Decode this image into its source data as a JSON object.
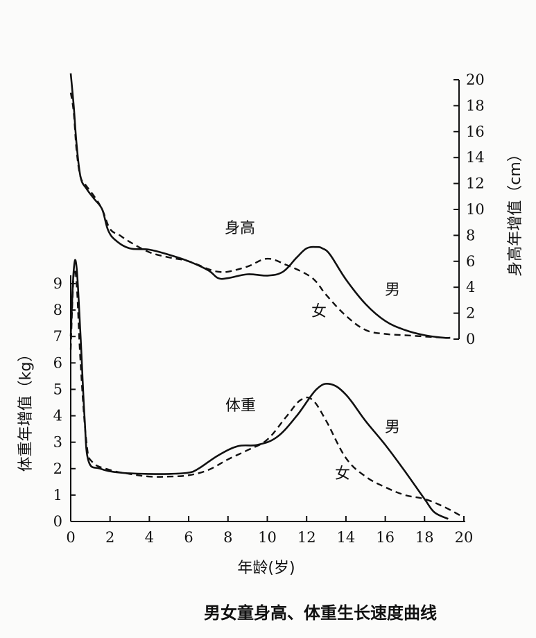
{
  "caption": "男女童身高、体重生长速度曲线",
  "colors": {
    "ink": "#111111",
    "background": "#fbfbfa"
  },
  "chart_data": [
    {
      "type": "line",
      "panel": "height",
      "annotation": "身高",
      "y_axis_side": "right",
      "xlabel": "年龄(岁)",
      "ylabel": "身高年增值（cm）",
      "xlim": [
        0,
        20
      ],
      "ylim": [
        0,
        20
      ],
      "y_ticks": [
        0,
        2,
        4,
        6,
        8,
        10,
        12,
        14,
        16,
        18,
        20
      ],
      "grid": false,
      "series": [
        {
          "name": "男",
          "line_style": "solid",
          "x": [
            0,
            0.15,
            0.3,
            0.5,
            0.8,
            1.2,
            1.6,
            1.9,
            2.3,
            3,
            4,
            5,
            6,
            7,
            7.5,
            8,
            9,
            10,
            10.8,
            11.5,
            12,
            12.5,
            12.8,
            13.2,
            14,
            15,
            16,
            17,
            18,
            19,
            19.3
          ],
          "y": [
            20.5,
            18,
            15,
            12.5,
            11.6,
            10.8,
            10,
            8.4,
            7.6,
            7,
            6.9,
            6.5,
            6.0,
            5.3,
            4.7,
            4.7,
            5.0,
            4.9,
            5.2,
            6.3,
            7.0,
            7.1,
            7.0,
            6.5,
            4.6,
            2.7,
            1.4,
            0.7,
            0.3,
            0.1,
            0.1
          ]
        },
        {
          "name": "女",
          "line_style": "dashed",
          "x": [
            0,
            0.15,
            0.3,
            0.5,
            0.8,
            1.2,
            1.6,
            2.0,
            2.5,
            3,
            4,
            5,
            6,
            7,
            7.5,
            8,
            9,
            10,
            11,
            12,
            12.5,
            13,
            14,
            15,
            16,
            17,
            18,
            19,
            19.3
          ],
          "y": [
            19,
            17.5,
            14.5,
            12.5,
            11.8,
            11.0,
            10.0,
            8.5,
            8.0,
            7.5,
            6.7,
            6.3,
            6.0,
            5.4,
            5.2,
            5.2,
            5.6,
            6.2,
            5.7,
            5.0,
            4.4,
            3.4,
            1.8,
            0.7,
            0.4,
            0.3,
            0.2,
            0.1,
            0.1
          ]
        }
      ]
    },
    {
      "type": "line",
      "panel": "weight",
      "annotation": "体重",
      "y_axis_side": "left",
      "xlabel": "年龄(岁)",
      "ylabel": "体重年增值（kg）",
      "xlim": [
        0,
        20
      ],
      "ylim": [
        0,
        9
      ],
      "x_ticks": [
        0,
        2,
        4,
        6,
        8,
        10,
        12,
        14,
        16,
        18,
        20
      ],
      "y_ticks": [
        0,
        1,
        2,
        3,
        4,
        5,
        6,
        7,
        8,
        9
      ],
      "grid": false,
      "series": [
        {
          "name": "男",
          "line_style": "solid",
          "x": [
            0,
            0.15,
            0.3,
            0.5,
            0.7,
            0.9,
            1.5,
            2.5,
            4,
            5,
            6,
            6.5,
            7.5,
            8.5,
            9.5,
            10.5,
            11.5,
            12.5,
            13.2,
            14,
            15,
            16,
            17,
            18,
            18.5,
            19.2
          ],
          "y": [
            7,
            9.5,
            9.6,
            7.0,
            4.0,
            2.3,
            2.0,
            1.85,
            1.8,
            1.8,
            1.85,
            2.0,
            2.5,
            2.85,
            2.9,
            3.2,
            4.0,
            5.0,
            5.2,
            4.8,
            3.8,
            2.9,
            1.9,
            0.85,
            0.35,
            0.1
          ]
        },
        {
          "name": "女",
          "line_style": "dashed",
          "x": [
            0,
            0.15,
            0.3,
            0.5,
            0.8,
            1.1,
            2,
            3,
            4,
            5,
            6,
            7,
            8,
            9,
            10,
            11,
            11.7,
            12.3,
            13,
            14,
            15,
            16,
            17,
            18,
            19,
            20
          ],
          "y": [
            6.5,
            9.3,
            9.0,
            6.0,
            3.0,
            2.25,
            1.95,
            1.8,
            1.7,
            1.7,
            1.75,
            1.95,
            2.35,
            2.7,
            3.1,
            4.0,
            4.6,
            4.6,
            3.8,
            2.4,
            1.7,
            1.3,
            1.0,
            0.85,
            0.55,
            0.15
          ]
        }
      ]
    }
  ]
}
